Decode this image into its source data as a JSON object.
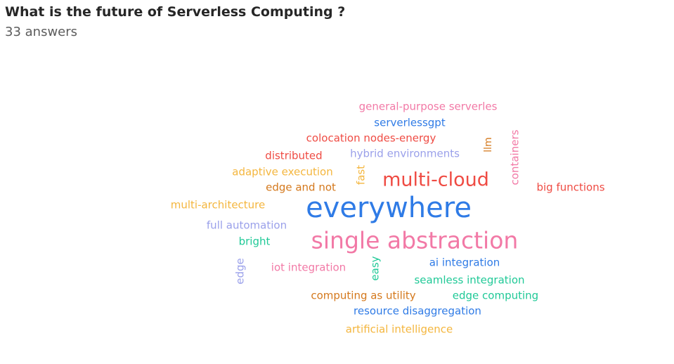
{
  "question": {
    "title": "What is the future of Serverless Computing ?",
    "answer_count": "33 answers"
  },
  "palette": {
    "pink": "#f279a6",
    "blue": "#2f7be6",
    "red": "#ef4b43",
    "lavender": "#9aa0ea",
    "orange": "#f4b63e",
    "brown": "#d4781c",
    "green": "#20c997"
  },
  "words": [
    {
      "text": "general-purpose serverles",
      "color": "pink",
      "vertical": false
    },
    {
      "text": "serverlessgpt",
      "color": "blue",
      "vertical": false
    },
    {
      "text": "colocation nodes-energy",
      "color": "red",
      "vertical": false
    },
    {
      "text": "distributed",
      "color": "red",
      "vertical": false
    },
    {
      "text": "hybrid environments",
      "color": "lavender",
      "vertical": false
    },
    {
      "text": "llm",
      "color": "brown",
      "vertical": true
    },
    {
      "text": "containers",
      "color": "pink",
      "vertical": true
    },
    {
      "text": "adaptive execution",
      "color": "orange",
      "vertical": false
    },
    {
      "text": "fast",
      "color": "orange",
      "vertical": true
    },
    {
      "text": "multi-cloud",
      "color": "red",
      "vertical": false
    },
    {
      "text": "big functions",
      "color": "red",
      "vertical": false
    },
    {
      "text": "edge and not",
      "color": "brown",
      "vertical": false
    },
    {
      "text": "multi-architecture",
      "color": "orange",
      "vertical": false
    },
    {
      "text": "everywhere",
      "color": "blue",
      "vertical": false
    },
    {
      "text": "full automation",
      "color": "lavender",
      "vertical": false
    },
    {
      "text": "single abstraction",
      "color": "pink",
      "vertical": false
    },
    {
      "text": "bright",
      "color": "green",
      "vertical": false
    },
    {
      "text": "edge",
      "color": "lavender",
      "vertical": true
    },
    {
      "text": "iot integration",
      "color": "pink",
      "vertical": false
    },
    {
      "text": "easy",
      "color": "green",
      "vertical": true
    },
    {
      "text": "ai integration",
      "color": "blue",
      "vertical": false
    },
    {
      "text": "seamless integration",
      "color": "green",
      "vertical": false
    },
    {
      "text": "computing as utility",
      "color": "brown",
      "vertical": false
    },
    {
      "text": "edge computing",
      "color": "green",
      "vertical": false
    },
    {
      "text": "resource disaggregation",
      "color": "blue",
      "vertical": false
    },
    {
      "text": "artificial intelligence",
      "color": "orange",
      "vertical": false
    }
  ]
}
